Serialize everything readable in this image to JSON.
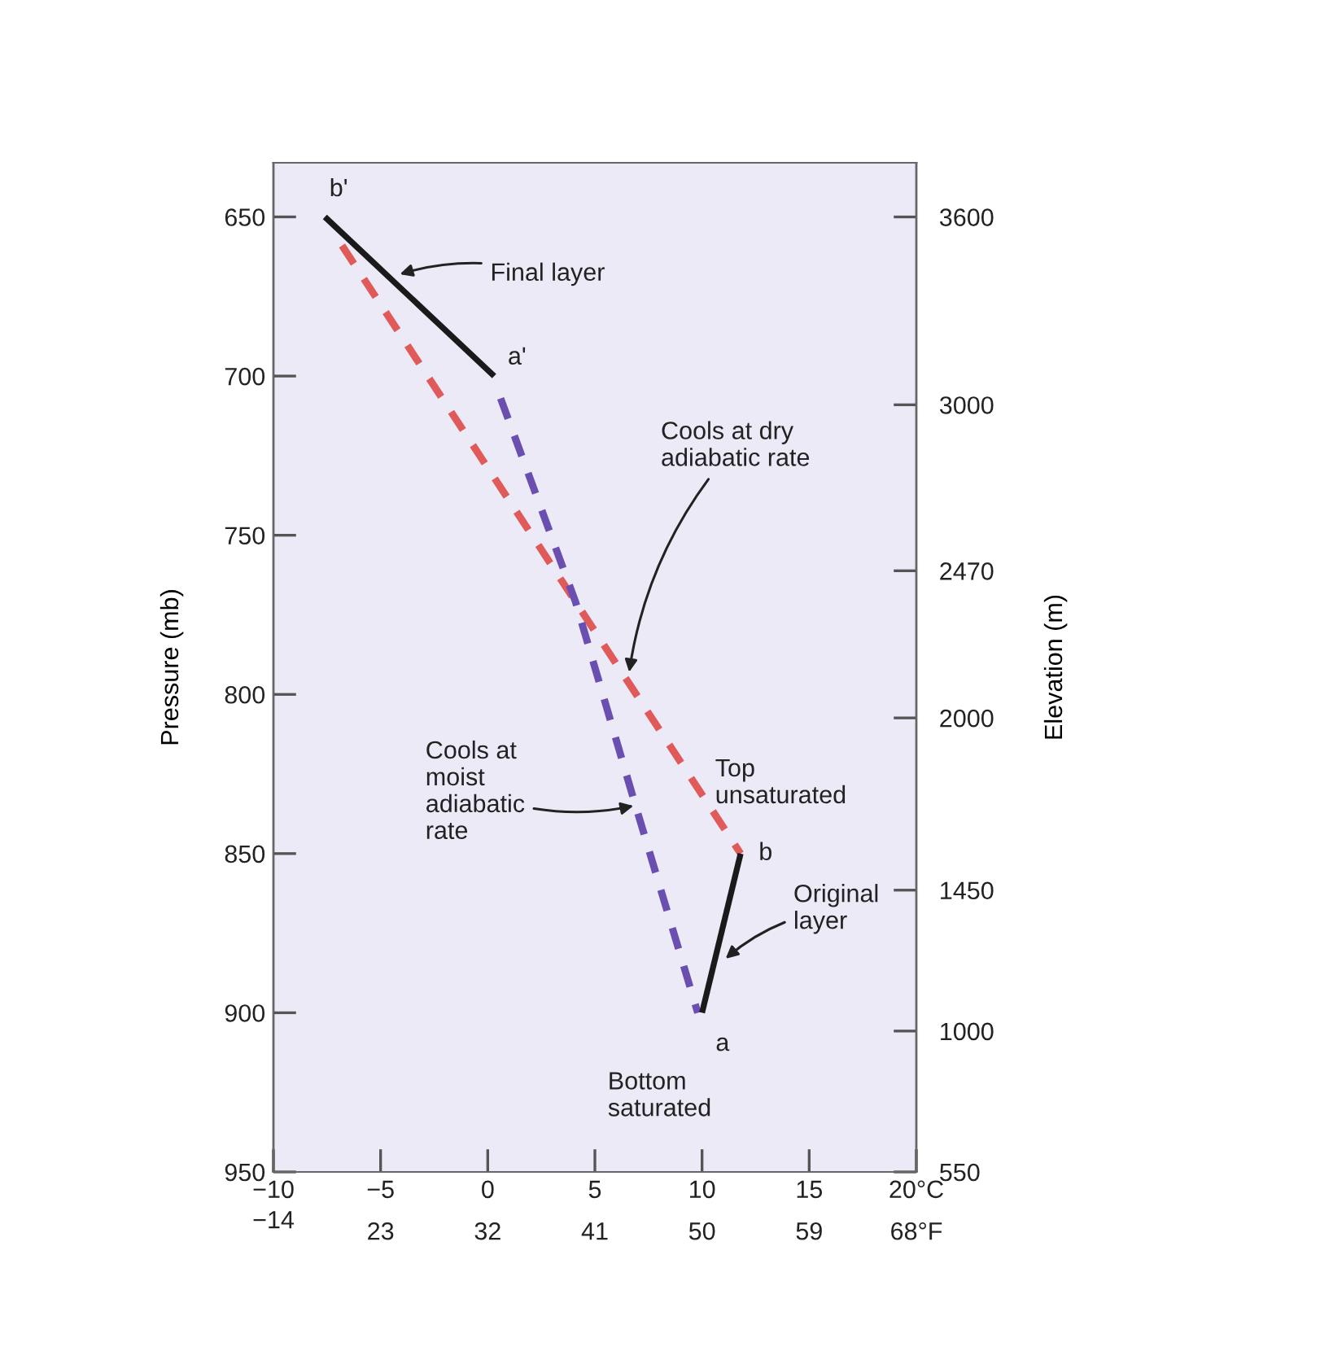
{
  "chart_data": {
    "type": "line",
    "ylabel": "Pressure (mb)",
    "y2label": "Elevation (m)",
    "xlim": [
      -10,
      20
    ],
    "ylim": [
      950,
      633
    ],
    "xticks": [
      {
        "value": -10,
        "label": "−10"
      },
      {
        "value": -5,
        "label": "−5"
      },
      0,
      5,
      10,
      15,
      {
        "value": 20,
        "label": "20°C"
      }
    ],
    "x2lim": [
      14,
      68
    ],
    "x2ticks": [
      {
        "value": 14,
        "label": null
      },
      23,
      32,
      41,
      50,
      59,
      {
        "value": 68,
        "label": "68°F"
      }
    ],
    "yticks": [
      650,
      700,
      750,
      800,
      850,
      900,
      950
    ],
    "y2lim": [
      550,
      3773
    ],
    "y2ticks": [
      550,
      1000,
      1450,
      2000,
      2470,
      3000,
      3600
    ],
    "grid": false,
    "legend": false,
    "series": [
      {
        "color": "#e05a5a",
        "line_style": "dashed",
        "x": [
          -6.8,
          11.8
        ],
        "values": [
          659,
          850
        ]
      },
      {
        "color": "#6a4fb0",
        "line_style": "dashed",
        "x": [
          0.6,
          4.1,
          6.9,
          9.8
        ],
        "values": [
          707,
          771,
          835,
          900
        ]
      },
      {
        "color": "#1a1a1a",
        "line_style": "solid",
        "x": [
          -7.6,
          0.3
        ],
        "values": [
          650,
          700
        ]
      },
      {
        "color": "#1a1a1a",
        "line_style": "solid",
        "x": [
          10,
          11.8
        ],
        "values": [
          900,
          850
        ]
      }
    ],
    "annotations": [
      {
        "text": "Final layer",
        "x": -4.1,
        "y": 668
      },
      {
        "text": "Cools at dry\nadiabatic rate",
        "x": 6.6,
        "y": 793
      },
      {
        "text": "Cools at\nmoist\nadiabatic\nrate",
        "x": 6.8,
        "y": 835
      },
      {
        "text": "Original\nlayer",
        "x": 11.1,
        "y": 883
      },
      "Top\nunsaturated",
      "Bottom\nsaturated",
      {
        "text": "b'",
        "x": -7.6,
        "y": 650
      },
      {
        "text": "a'",
        "x": 0.3,
        "y": 700
      },
      {
        "text": "b",
        "x": 11.8,
        "y": 850
      },
      {
        "text": "a",
        "x": 10,
        "y": 900
      },
      "−14"
    ]
  }
}
